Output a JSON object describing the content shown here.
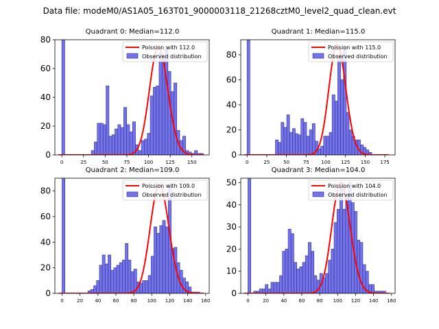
{
  "suptitle": "Data file: modeM0/AS1A05_163T01_9000003118_21268cztM0_level2_quad_clean.evt",
  "colors": {
    "bar_fill": "#7474e6",
    "bar_edge": "#2d2d9e",
    "curve": "#ff0000"
  },
  "chart_data": [
    {
      "type": "bar",
      "title": "Quadrant 0: Median=112.0",
      "xlim": [
        -8,
        170
      ],
      "ylim": [
        0,
        80
      ],
      "xticks": [
        0,
        25,
        50,
        75,
        100,
        125,
        150
      ],
      "yticks": [
        0,
        20,
        40,
        60,
        80
      ],
      "bin_width": 3.4,
      "bar_x": [
        0,
        34,
        37.4,
        40.8,
        44.2,
        47.6,
        51,
        54.4,
        57.8,
        61.2,
        64.6,
        68,
        71.4,
        74.8,
        78.2,
        81.6,
        85,
        88.4,
        91.8,
        95.2,
        98.6,
        102,
        105.4,
        108.8,
        112.2,
        115.6,
        119,
        122.4,
        125.8,
        129.2,
        132.6,
        136,
        139.4,
        142.8,
        146.2,
        149.6,
        153,
        156.4,
        159.8
      ],
      "bar_values": [
        80,
        3,
        9,
        22,
        22,
        21,
        48,
        13,
        14,
        18,
        21,
        19,
        33,
        21,
        16,
        23,
        7,
        3,
        10,
        11,
        15,
        41,
        47,
        48,
        71,
        64,
        73,
        58,
        44,
        50,
        17,
        10,
        13,
        3,
        2,
        1,
        3,
        1,
        1
      ],
      "curve": {
        "lambda": 112.0,
        "peak": 75
      },
      "legend": [
        "Poission with 112.0",
        "Observed distribution"
      ]
    },
    {
      "type": "bar",
      "title": "Quadrant 1: Median=115.0",
      "xlim": [
        -8,
        188
      ],
      "ylim": [
        0,
        92
      ],
      "xticks": [
        0,
        25,
        50,
        75,
        100,
        125,
        150,
        175
      ],
      "yticks": [
        0,
        20,
        40,
        60,
        80
      ],
      "bin_width": 3.6,
      "bar_x": [
        0,
        36,
        39.6,
        43.2,
        46.8,
        50.4,
        54,
        57.6,
        61.2,
        64.8,
        68.4,
        72,
        75.6,
        79.2,
        82.8,
        86.4,
        90,
        93.6,
        97.2,
        100.8,
        104.4,
        108,
        111.6,
        115.2,
        118.8,
        122.4,
        126,
        129.6,
        133.2,
        136.8,
        140.4,
        144,
        147.6,
        151.2,
        154.8
      ],
      "bar_values": [
        92,
        12,
        10,
        26,
        22,
        32,
        18,
        21,
        17,
        16,
        29,
        26,
        15,
        20,
        25,
        11,
        5,
        7,
        15,
        15,
        18,
        48,
        43,
        80,
        60,
        87,
        34,
        20,
        15,
        12,
        12,
        8,
        6,
        4,
        2
      ],
      "curve": {
        "lambda": 115.0,
        "peak": 88
      },
      "legend": [
        "Poission with 115.0",
        "Observed distribution"
      ]
    },
    {
      "type": "bar",
      "title": "Quadrant 2: Median=109.0",
      "xlim": [
        -8,
        164
      ],
      "ylim": [
        0,
        90
      ],
      "xticks": [
        0,
        20,
        40,
        60,
        80,
        100,
        120,
        140,
        160
      ],
      "yticks": [
        0,
        20,
        40,
        60,
        80
      ],
      "bin_width": 3.2,
      "bar_x": [
        0,
        28.8,
        32,
        35.2,
        38.4,
        41.6,
        44.8,
        48,
        51.2,
        54.4,
        57.6,
        60.8,
        64,
        67.2,
        70.4,
        73.6,
        76.8,
        80,
        83.2,
        86.4,
        89.6,
        92.8,
        96,
        99.2,
        102.4,
        105.6,
        108.8,
        112,
        115.2,
        118.4,
        121.6,
        124.8,
        128,
        131.2,
        134.4,
        137.6,
        140.8,
        144,
        147.2,
        150.4
      ],
      "bar_values": [
        90,
        2,
        3,
        6,
        10,
        22,
        30,
        23,
        30,
        18,
        20,
        22,
        24,
        26,
        39,
        26,
        17,
        19,
        9,
        8,
        10,
        10,
        14,
        29,
        52,
        47,
        53,
        57,
        52,
        85,
        35,
        36,
        24,
        18,
        12,
        9,
        5,
        1,
        1,
        1
      ],
      "curve": {
        "lambda": 109.0,
        "peak": 85
      },
      "legend": [
        "Poission with 109.0",
        "Observed distribution"
      ]
    },
    {
      "type": "bar",
      "title": "Quadrant 3: Median=104.0",
      "xlim": [
        -8,
        164
      ],
      "ylim": [
        0,
        52
      ],
      "xticks": [
        0,
        20,
        40,
        60,
        80,
        100,
        120,
        140,
        160
      ],
      "yticks": [
        0,
        10,
        20,
        30,
        40,
        50
      ],
      "bin_width": 3.2,
      "bar_x": [
        0,
        6.4,
        9.6,
        12.8,
        16,
        19.2,
        22.4,
        25.6,
        28.8,
        32,
        35.2,
        38.4,
        41.6,
        44.8,
        48,
        51.2,
        54.4,
        57.6,
        60.8,
        64,
        67.2,
        70.4,
        73.6,
        76.8,
        80,
        83.2,
        86.4,
        89.6,
        92.8,
        96,
        99.2,
        102.4,
        105.6,
        108.8,
        112,
        115.2,
        118.4,
        121.6,
        124.8,
        128,
        131.2,
        134.4,
        137.6,
        140.8,
        144,
        147.2,
        150.4
      ],
      "bar_values": [
        52,
        1,
        1,
        2,
        2,
        4,
        2,
        5,
        5,
        5,
        8,
        19,
        20,
        29,
        27,
        14,
        11,
        12,
        14,
        17,
        23,
        19,
        8,
        6,
        9,
        7,
        9,
        15,
        20,
        32,
        38,
        48,
        38,
        44,
        50,
        41,
        37,
        24,
        23,
        13,
        10,
        4,
        4,
        1,
        1,
        1,
        1
      ],
      "curve": {
        "lambda": 104.0,
        "peak": 50
      },
      "legend": [
        "Poission with 104.0",
        "Observed distribution"
      ]
    }
  ]
}
